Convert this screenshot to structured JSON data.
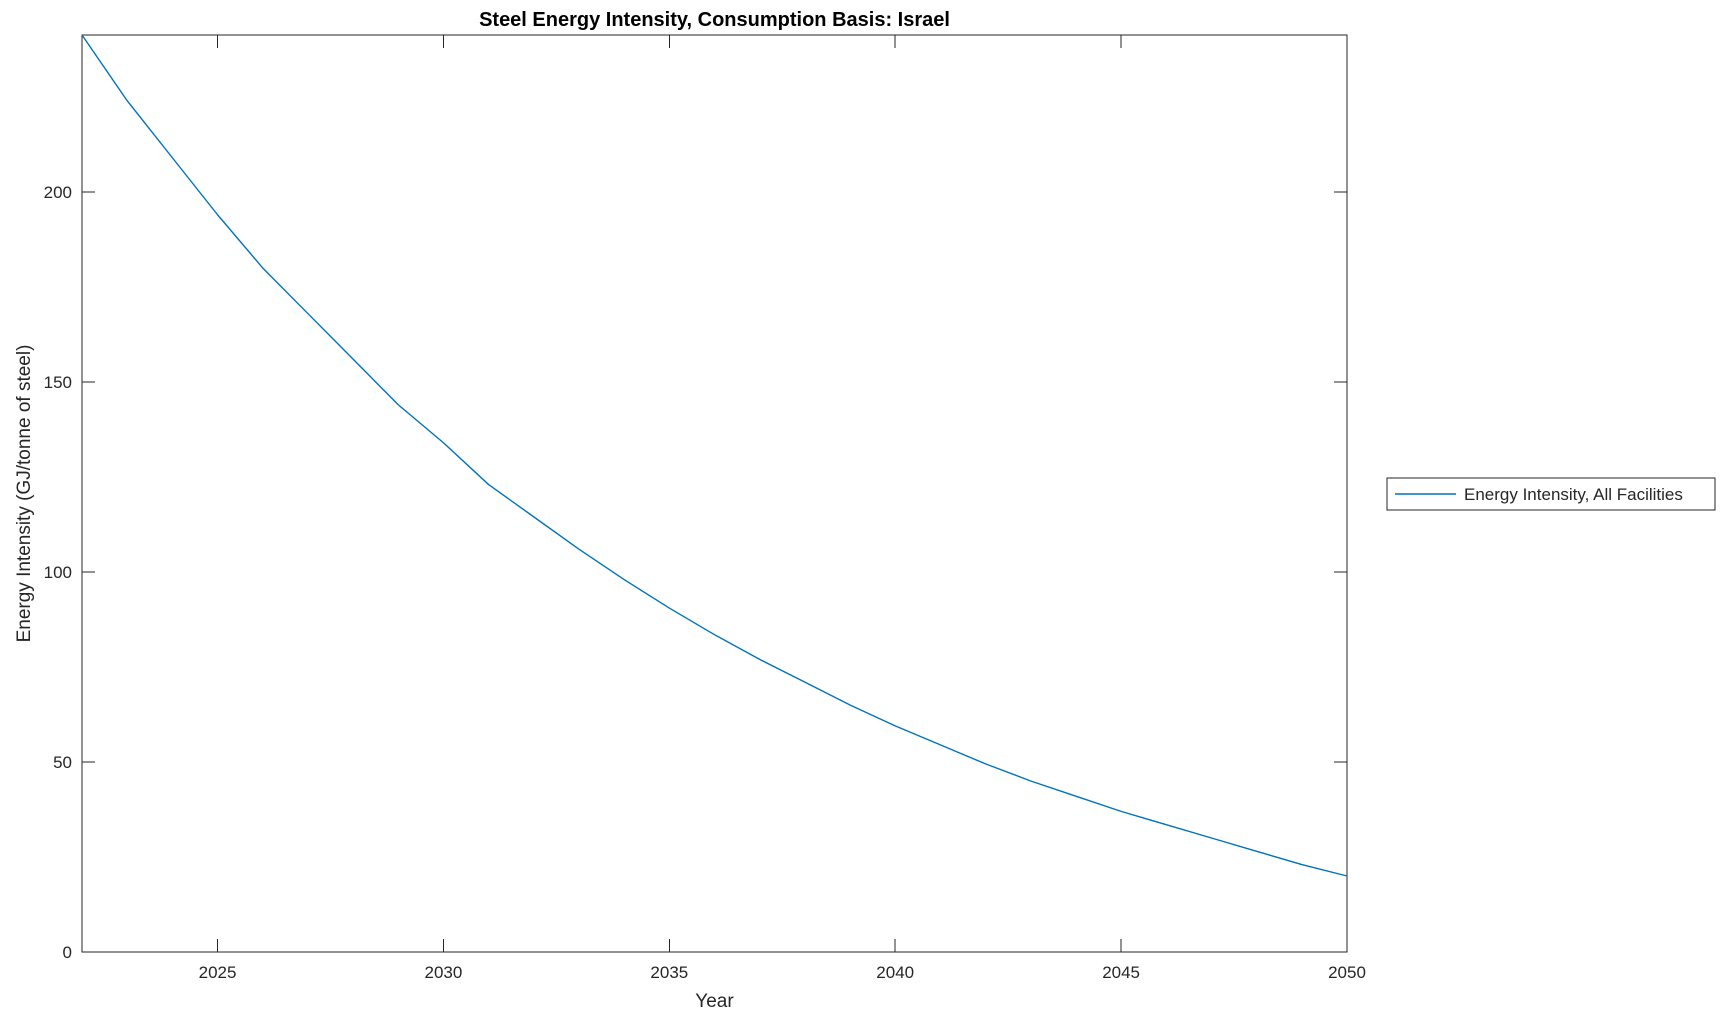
{
  "figure": {
    "background": "#ffffff"
  },
  "chart_data": {
    "type": "line",
    "title": "Steel Energy Intensity, Consumption Basis: Israel",
    "xlabel": "Year",
    "ylabel": "Energy Intensity (GJ/tonne of steel)",
    "xlim": [
      2022,
      2050
    ],
    "ylim": [
      0,
      241.3
    ],
    "xticks": [
      2025,
      2030,
      2035,
      2040,
      2045,
      2050
    ],
    "yticks": [
      0,
      50,
      100,
      150,
      200
    ],
    "grid": false,
    "box": true,
    "tick_direction": "in",
    "legend_position": "right-outside",
    "legend": [
      {
        "label": "Energy Intensity, All Facilities",
        "color": "#0072BD"
      }
    ],
    "x": [
      2022,
      2023,
      2024,
      2025,
      2026,
      2027,
      2028,
      2029,
      2030,
      2031,
      2032,
      2033,
      2034,
      2035,
      2036,
      2037,
      2038,
      2039,
      2040,
      2041,
      2042,
      2043,
      2044,
      2045,
      2046,
      2047,
      2048,
      2049,
      2050
    ],
    "series": [
      {
        "name": "Energy Intensity, All Facilities",
        "color": "#0072BD",
        "values": [
          241.3,
          224,
          209,
          194,
          180,
          168,
          156,
          144,
          134,
          123,
          114.5,
          106,
          98,
          90.5,
          83.5,
          77,
          71,
          65,
          59.5,
          54.5,
          49.5,
          45,
          41,
          37,
          33.5,
          30,
          26.5,
          23,
          20
        ]
      }
    ],
    "colors": {
      "axis": "#262626",
      "tick_text": "#262626",
      "title": "#000000",
      "legend_border": "#262626"
    }
  }
}
